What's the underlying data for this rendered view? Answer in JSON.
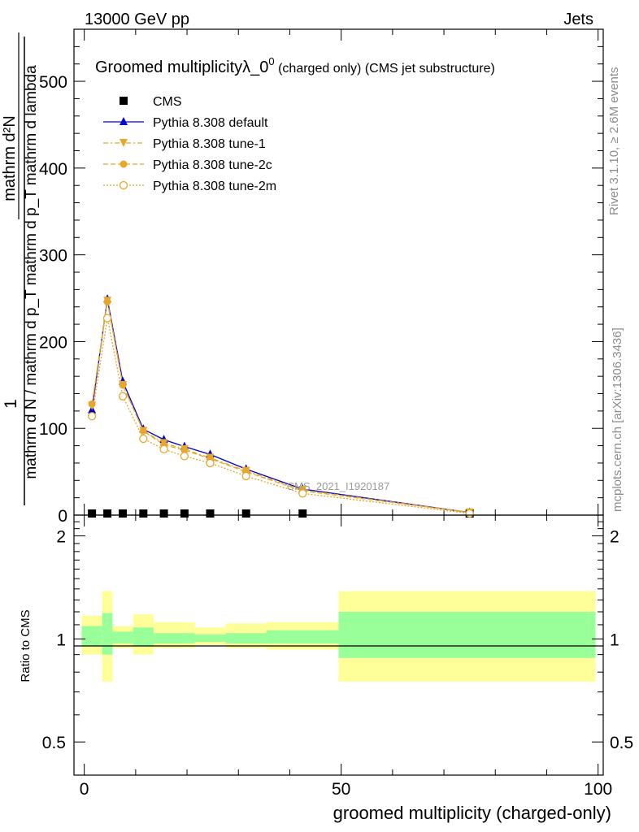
{
  "header": {
    "left": "13000 GeV pp",
    "right": "Jets"
  },
  "side_labels": {
    "rivet": "Rivet 3.1.10, ≥ 2.6M events",
    "mcplots": "mcplots.cern.ch [arXiv:1306.3436]"
  },
  "chart_data": {
    "type": "line",
    "title": "Groomed multiplicityλ_0",
    "title_superscript": "0",
    "title_suffix": " (charged only) (CMS jet substructure)",
    "watermark": "CMS_2021_I1920187",
    "ylabel_upper": "1",
    "ylabel_numerator": "mathrm d²N",
    "ylabel_denominator": "mathrm d N / mathrm d p_T mathrm d p_T mathrm d lambda",
    "ratio_ylabel": "Ratio to CMS",
    "xlabel": "groomed multiplicity (charged-only)",
    "xlim": [
      -2,
      101
    ],
    "ylim": [
      0,
      560
    ],
    "ratio_ylim": [
      0.4,
      2.3
    ],
    "x_ticks": [
      "0",
      "50",
      "100"
    ],
    "y_ticks": [
      "0",
      "100",
      "200",
      "300",
      "400",
      "500"
    ],
    "ratio_y_ticks": [
      "0.5",
      "1",
      "2"
    ],
    "legend_position": "top-left",
    "x": [
      1.5,
      4.5,
      7.5,
      11.5,
      15.5,
      19.5,
      24.5,
      31.5,
      42.5,
      75
    ],
    "series": [
      {
        "name": "CMS",
        "marker": "square",
        "color": "#000000",
        "values": [
          1,
          1,
          1,
          1,
          1,
          1,
          1,
          1,
          1,
          1
        ]
      },
      {
        "name": "Pythia 8.308 default",
        "marker": "triangle-up",
        "color": "#0000cc",
        "dash": "solid",
        "values": [
          121,
          249,
          154,
          99,
          87,
          79,
          70,
          53,
          30,
          3
        ]
      },
      {
        "name": "Pythia 8.308 tune-1",
        "marker": "triangle-down",
        "color": "#e8a72a",
        "dash": "dashdot",
        "values": [
          126,
          247,
          150,
          97,
          83,
          76,
          66,
          51,
          29,
          3
        ]
      },
      {
        "name": "Pythia 8.308 tune-2c",
        "marker": "circle-filled",
        "color": "#e8a72a",
        "dash": "dashed",
        "values": [
          128,
          246,
          150,
          97,
          81,
          75,
          65,
          50,
          28,
          3
        ]
      },
      {
        "name": "Pythia 8.308 tune-2m",
        "marker": "circle-open",
        "color": "#e8a72a",
        "dash": "dotted",
        "values": [
          114,
          227,
          137,
          88,
          76,
          68,
          60,
          45,
          25,
          2
        ]
      }
    ],
    "ratio_bands": [
      {
        "x0": -0.5,
        "x1": 3.5,
        "green": [
          0.95,
          1.09
        ],
        "yellow": [
          0.9,
          1.17
        ]
      },
      {
        "x0": 3.5,
        "x1": 5.5,
        "green": [
          0.9,
          1.19
        ],
        "yellow": [
          0.75,
          1.38
        ]
      },
      {
        "x0": 5.5,
        "x1": 9.5,
        "green": [
          0.97,
          1.05
        ],
        "yellow": [
          0.94,
          1.09
        ]
      },
      {
        "x0": 9.5,
        "x1": 13.5,
        "green": [
          0.95,
          1.08
        ],
        "yellow": [
          0.9,
          1.18
        ]
      },
      {
        "x0": 13.5,
        "x1": 21.5,
        "green": [
          0.97,
          1.04
        ],
        "yellow": [
          0.94,
          1.12
        ]
      },
      {
        "x0": 21.5,
        "x1": 27.5,
        "green": [
          0.98,
          1.03
        ],
        "yellow": [
          0.96,
          1.08
        ]
      },
      {
        "x0": 27.5,
        "x1": 35.5,
        "green": [
          0.97,
          1.04
        ],
        "yellow": [
          0.94,
          1.11
        ]
      },
      {
        "x0": 35.5,
        "x1": 49.5,
        "green": [
          0.97,
          1.06
        ],
        "yellow": [
          0.93,
          1.12
        ]
      },
      {
        "x0": 49.5,
        "x1": 99.5,
        "green": [
          0.88,
          1.2
        ],
        "yellow": [
          0.75,
          1.38
        ]
      }
    ]
  }
}
